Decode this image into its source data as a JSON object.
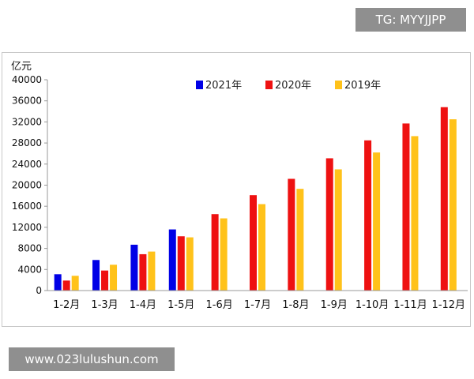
{
  "watermark_tag": "TG: MYYJJPP",
  "watermark_site": "www.023lulushun.com",
  "chart_data": {
    "type": "bar",
    "title": "",
    "xlabel": "",
    "ylabel": "亿元",
    "ylim": [
      0,
      40000
    ],
    "yticks": [
      0,
      4000,
      8000,
      12000,
      16000,
      20000,
      24000,
      28000,
      32000,
      36000,
      40000
    ],
    "grid": false,
    "legend_position": "top",
    "categories": [
      "1-2月",
      "1-3月",
      "1-4月",
      "1-5月",
      "1-6月",
      "1-7月",
      "1-8月",
      "1-9月",
      "1-10月",
      "1-11月",
      "1-12月"
    ],
    "series": [
      {
        "name": "2021年",
        "color": "#0000e6",
        "values": [
          3100,
          5800,
          8700,
          11600,
          null,
          null,
          null,
          null,
          null,
          null,
          null
        ]
      },
      {
        "name": "2020年",
        "color": "#ee1111",
        "values": [
          1900,
          3800,
          6900,
          10300,
          14500,
          18100,
          21200,
          25100,
          28500,
          31700,
          34800
        ]
      },
      {
        "name": "2019年",
        "color": "#ffc21a",
        "values": [
          2800,
          4900,
          7400,
          10100,
          13700,
          16400,
          19300,
          23000,
          26200,
          29300,
          32500
        ]
      }
    ]
  }
}
